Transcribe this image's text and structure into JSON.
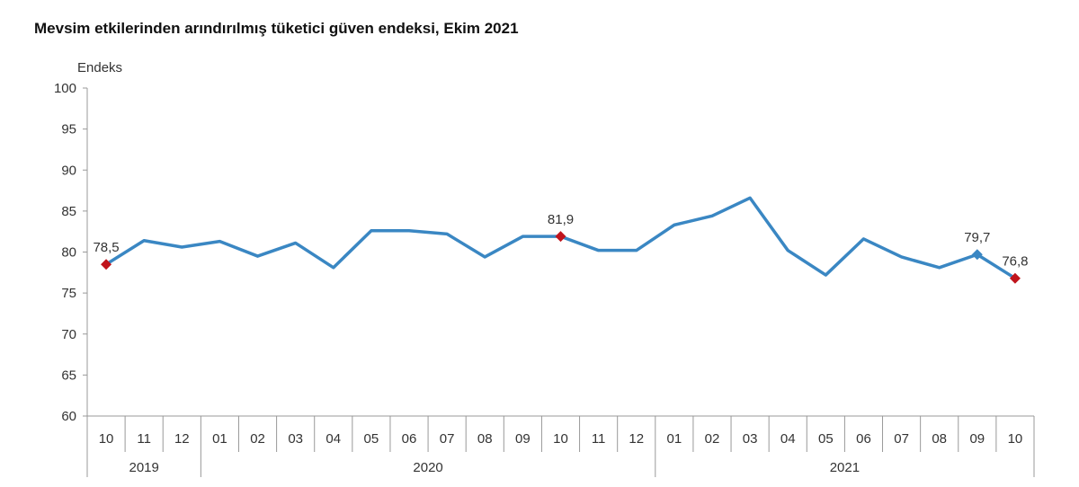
{
  "chart_data": {
    "type": "line",
    "title": "Mevsim etkilerinden arındırılmış tüketici güven endeksi, Ekim 2021",
    "ylabel": "Endeks",
    "ylim": [
      60,
      100
    ],
    "yticks": [
      60,
      65,
      70,
      75,
      80,
      85,
      90,
      95,
      100
    ],
    "categories": [
      "10",
      "11",
      "12",
      "01",
      "02",
      "03",
      "04",
      "05",
      "06",
      "07",
      "08",
      "09",
      "10",
      "11",
      "12",
      "01",
      "02",
      "03",
      "04",
      "05",
      "06",
      "07",
      "08",
      "09",
      "10"
    ],
    "years": [
      {
        "label": "2019",
        "span": 3
      },
      {
        "label": "2020",
        "span": 12
      },
      {
        "label": "2021",
        "span": 10
      }
    ],
    "series": [
      {
        "values": [
          78.5,
          81.4,
          80.6,
          81.3,
          79.5,
          81.1,
          78.1,
          82.6,
          82.6,
          82.2,
          79.4,
          81.9,
          81.9,
          80.2,
          80.2,
          83.3,
          84.4,
          86.6,
          80.2,
          77.2,
          81.6,
          79.4,
          78.1,
          79.7,
          76.8
        ]
      }
    ],
    "data_labels": [
      {
        "index": 0,
        "text": "78,5",
        "marker": "red"
      },
      {
        "index": 12,
        "text": "81,9",
        "marker": "red"
      },
      {
        "index": 23,
        "text": "79,7",
        "marker": "blue"
      },
      {
        "index": 24,
        "text": "76,8",
        "marker": "red"
      }
    ],
    "line_color": "#3a87c3",
    "highlight_color": "#c0141c",
    "grid": false
  }
}
